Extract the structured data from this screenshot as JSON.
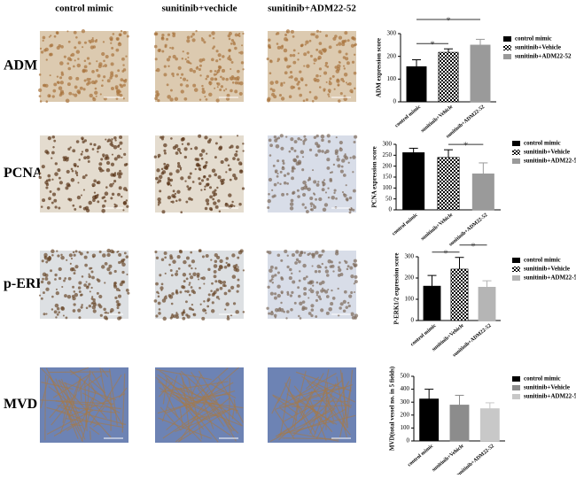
{
  "figure": {
    "columns": [
      "control mimic",
      "sunitinib+vechicle",
      "sunitinib+ADM22-52"
    ],
    "rows": [
      "ADM",
      "PCNA",
      "p-ERK",
      "MVD"
    ]
  },
  "chart_data": [
    {
      "type": "bar",
      "ylabel": "ADM expression score",
      "categories": [
        "control mimic",
        "sunitinib+Vehicle",
        "sunitinib+ADM22-52"
      ],
      "values": [
        155,
        218,
        250
      ],
      "errors": [
        30,
        15,
        25
      ],
      "colors": [
        "#000000",
        "#000000",
        "#9a9a9a"
      ],
      "patterns": [
        "solid",
        "check",
        "solid"
      ],
      "ylim": [
        0,
        300
      ],
      "yticks": [
        0,
        100,
        200,
        300
      ],
      "legend": true,
      "significance": [
        {
          "label": "*",
          "between": [
            0,
            1
          ]
        },
        {
          "label": "*",
          "between": [
            0,
            2
          ]
        }
      ]
    },
    {
      "type": "bar",
      "ylabel": "PCNA expression score",
      "categories": [
        "control mimic",
        "sunitinib+Vehicle",
        "sunitinib+ADM22-52"
      ],
      "values": [
        262,
        240,
        165
      ],
      "errors": [
        20,
        35,
        50
      ],
      "colors": [
        "#000000",
        "#000000",
        "#9a9a9a"
      ],
      "patterns": [
        "solid",
        "check",
        "solid"
      ],
      "ylim": [
        0,
        300
      ],
      "yticks": [
        0,
        50,
        100,
        150,
        200,
        250,
        300
      ],
      "legend": true,
      "significance": [
        {
          "label": "*",
          "between": [
            1,
            2
          ]
        }
      ]
    },
    {
      "type": "bar",
      "ylabel": "P-ERK1/2 expression score",
      "categories": [
        "control mimic",
        "sunitinib+Vehicle",
        "sunitinib+ADM22-52"
      ],
      "values": [
        162,
        242,
        157
      ],
      "errors": [
        50,
        55,
        30
      ],
      "colors": [
        "#000000",
        "#000000",
        "#b5b5b5"
      ],
      "patterns": [
        "solid",
        "check",
        "solid"
      ],
      "ylim": [
        0,
        300
      ],
      "yticks": [
        0,
        100,
        200,
        300
      ],
      "legend": true,
      "significance": [
        {
          "label": "*",
          "between": [
            0,
            1
          ]
        },
        {
          "label": "*",
          "between": [
            1,
            2
          ]
        }
      ]
    },
    {
      "type": "bar",
      "ylabel": "MVD(total vessel no. in 5 fields)",
      "categories": [
        "control mimic",
        "sunitinib+Vehicle",
        "sunitinib+ADM22-52"
      ],
      "values": [
        325,
        278,
        250
      ],
      "errors": [
        75,
        75,
        45
      ],
      "colors": [
        "#000000",
        "#8c8c8c",
        "#c8c8c8"
      ],
      "patterns": [
        "solid",
        "solid",
        "solid"
      ],
      "ylim": [
        0,
        500
      ],
      "yticks": [
        0,
        100,
        200,
        300,
        400,
        500
      ],
      "legend": true,
      "significance": []
    }
  ]
}
